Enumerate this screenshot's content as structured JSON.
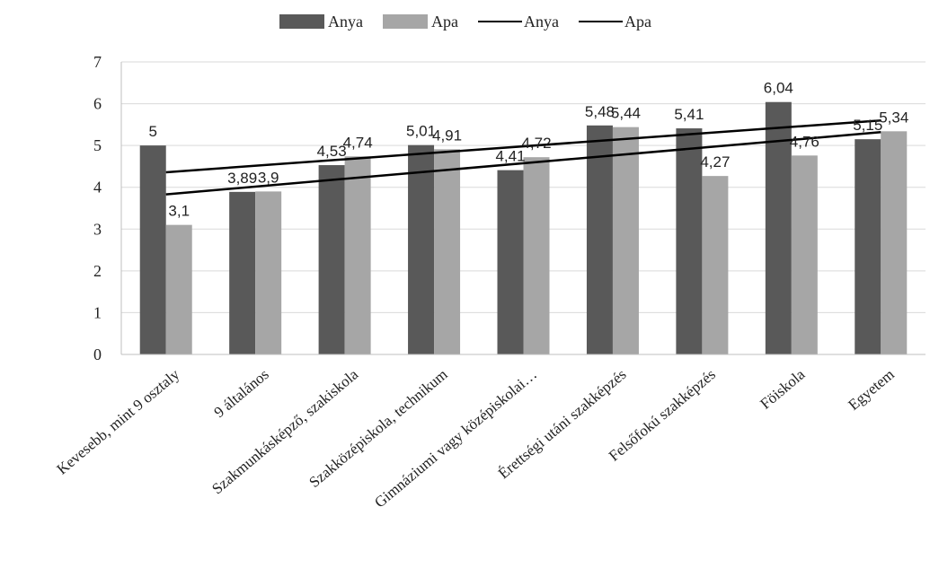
{
  "chart_data": {
    "type": "bar",
    "categories": [
      "Kevesebb, mint 9 osztaly",
      "9 általános",
      "Szakmunkásképző, szakiskola",
      "Szakközépiskola, technikum",
      "Gimnáziumi vagy középiskolai…",
      "Érettségi utáni szakképzés",
      "Felsőfokú szakképzés",
      "Föiskola",
      "Egyetem"
    ],
    "series": [
      {
        "name": "Anya",
        "color": "#595959",
        "values": [
          5,
          3.89,
          4.53,
          5.01,
          4.41,
          5.48,
          5.41,
          6.04,
          5.15
        ],
        "labels": [
          "5",
          "3,89",
          "4,53",
          "5,01",
          "4,41",
          "5,48",
          "5,41",
          "6,04",
          "5,15"
        ]
      },
      {
        "name": "Apa",
        "color": "#a6a6a6",
        "values": [
          3.1,
          3.9,
          4.74,
          4.91,
          4.72,
          5.44,
          4.27,
          4.76,
          5.34
        ],
        "labels": [
          "3,1",
          "3,9",
          "4,74",
          "4,91",
          "4,72",
          "5,44",
          "4,27",
          "4,76",
          "5,34"
        ]
      }
    ],
    "trendlines": [
      {
        "name": "Anya",
        "color": "#000000",
        "start": 4.36,
        "end": 5.6
      },
      {
        "name": "Apa",
        "color": "#000000",
        "start": 3.83,
        "end": 5.32
      }
    ],
    "ylim": [
      0,
      7
    ],
    "yticks": [
      "0",
      "1",
      "2",
      "3",
      "4",
      "5",
      "6",
      "7"
    ],
    "grid": true,
    "legend_position": "top-center",
    "title": "",
    "xlabel": "",
    "ylabel": ""
  }
}
